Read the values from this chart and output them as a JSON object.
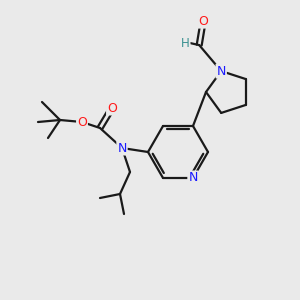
{
  "bg_color": "#eaeaea",
  "bond_color": "#1a1a1a",
  "bond_width": 1.6,
  "atom_colors": {
    "N": "#1a1aff",
    "O": "#ff1a1a",
    "H": "#3a9090",
    "C": "#1a1a1a"
  },
  "figsize": [
    3.0,
    3.0
  ],
  "dpi": 100
}
